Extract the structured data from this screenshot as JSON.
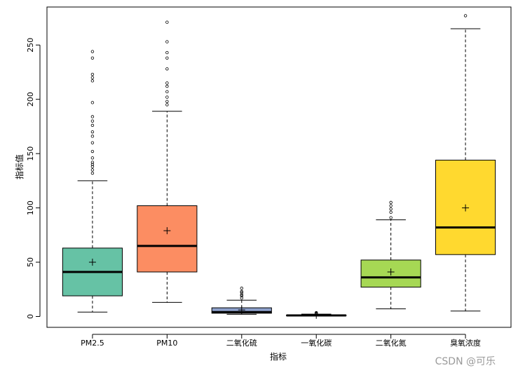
{
  "chart_data": {
    "type": "box",
    "xlabel": "指标",
    "ylabel": "指标值",
    "ylim": [
      -10,
      285
    ],
    "yticks": [
      0,
      50,
      100,
      150,
      200,
      250
    ],
    "categories": [
      "PM2.5",
      "PM10",
      "二氧化硫",
      "一氧化碳",
      "二氧化氮",
      "臭氧浓度"
    ],
    "boxes": [
      {
        "category": "PM2.5",
        "color": "#66c2a5",
        "whisker_low": 4,
        "q1": 19,
        "median": 41,
        "q3": 63,
        "whisker_high": 125,
        "mean": 50,
        "outliers": [
          132,
          135,
          138,
          140,
          142,
          146,
          152,
          160,
          166,
          170,
          176,
          180,
          184,
          197,
          217,
          220,
          223,
          238,
          244
        ]
      },
      {
        "category": "PM10",
        "color": "#fc8d62",
        "whisker_low": 13,
        "q1": 41,
        "median": 65,
        "q3": 102,
        "whisker_high": 189,
        "mean": 79,
        "outliers": [
          195,
          198,
          202,
          207,
          212,
          215,
          228,
          238,
          243,
          253,
          271
        ]
      },
      {
        "category": "二氧化硫",
        "color": "#8da0cb",
        "whisker_low": 2,
        "q1": 3,
        "median": 4,
        "q3": 8,
        "whisker_high": 15,
        "mean": 6,
        "outliers": [
          17,
          19,
          20,
          22,
          23,
          26
        ]
      },
      {
        "category": "一氧化碳",
        "color": "#e78ac3",
        "whisker_low": 0.3,
        "q1": 0.6,
        "median": 1,
        "q3": 1.3,
        "whisker_high": 2.2,
        "mean": 1.1,
        "outliers": [
          2.5,
          3,
          3.5
        ]
      },
      {
        "category": "二氧化氮",
        "color": "#a6d854",
        "whisker_low": 7,
        "q1": 27,
        "median": 36,
        "q3": 52,
        "whisker_high": 89,
        "mean": 41,
        "outliers": [
          91,
          96,
          99,
          102,
          105
        ]
      },
      {
        "category": "臭氧浓度",
        "color": "#ffd92f",
        "whisker_low": 5,
        "q1": 57,
        "median": 82,
        "q3": 144,
        "whisker_high": 265,
        "mean": 100,
        "outliers": [
          277
        ]
      }
    ]
  },
  "watermark": "CSDN @可乐"
}
